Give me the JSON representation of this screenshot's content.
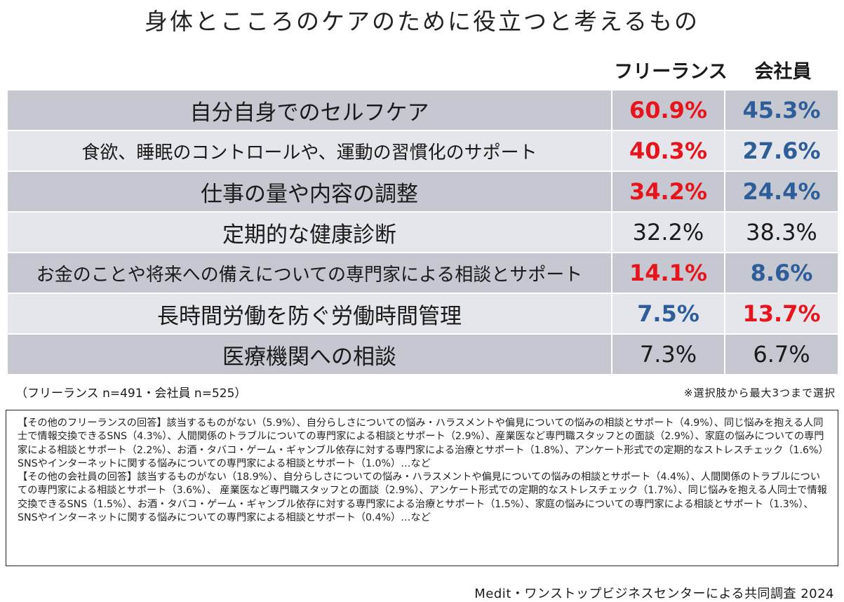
{
  "chart_data": {
    "type": "table",
    "title": "身体とこころのケアのために役立つと考えるもの",
    "columns": [
      "フリーランス",
      "会社員"
    ],
    "colors": {
      "highlight_red": "#e8141c",
      "highlight_blue": "#2e5e9a",
      "plain": "#1a1a1a"
    },
    "rows": [
      {
        "label": "自分自身でのセルフケア",
        "freelance": "60.9%",
        "employee": "45.3%",
        "freelance_color": "red",
        "employee_color": "blue"
      },
      {
        "label": "食欲、睡眠のコントロールや、運動の習慣化のサポート",
        "freelance": "40.3%",
        "employee": "27.6%",
        "freelance_color": "red",
        "employee_color": "blue"
      },
      {
        "label": "仕事の量や内容の調整",
        "freelance": "34.2%",
        "employee": "24.4%",
        "freelance_color": "red",
        "employee_color": "blue"
      },
      {
        "label": "定期的な健康診断",
        "freelance": "32.2%",
        "employee": "38.3%",
        "freelance_color": "plain",
        "employee_color": "plain"
      },
      {
        "label": "お金のことや将来への備えについての専門家による相談とサポート",
        "freelance": "14.1%",
        "employee": "8.6%",
        "freelance_color": "red",
        "employee_color": "blue"
      },
      {
        "label": "長時間労働を防ぐ労働時間管理",
        "freelance": "7.5%",
        "employee": "13.7%",
        "freelance_color": "blue",
        "employee_color": "red"
      },
      {
        "label": "医療機関への相談",
        "freelance": "7.3%",
        "employee": "6.7%",
        "freelance_color": "plain",
        "employee_color": "plain"
      }
    ],
    "sample_note": "（フリーランス n=491・会社員 n=525）",
    "select_note": "※選択肢から最大3つまで選択"
  },
  "other_answers": {
    "freelance": "【その他のフリーランスの回答】該当するものがない（5.9%）、自分らしさについての悩み・ハラスメントや偏見についての悩みの相談とサポート（4.9%）、同じ悩みを抱える人同士で情報交換できるSNS（4.3%）、人間関係のトラブルについての専門家による相談とサポート（2.9%）、産業医など専門職スタッフとの面談（2.9%）、家庭の悩みについての専門家による相談とサポート（2.2%）、お酒・タバコ・ゲーム・ギャンブル依存に対する専門家による治療とサポート（1.8%）、アンケート形式での定期的なストレスチェック（1.6%）SNSやインターネットに関する悩みについての専門家による相談とサポート（1.0%）…など",
    "employee": "【その他の会社員の回答】該当するものがない（18.9%）、自分らしさについての悩み・ハラスメントや偏見についての悩みの相談とサポート（4.4%）、人間関係のトラブルについての専門家による相談とサポート（3.6%）、 産業医など専門職スタッフとの面談（2.9%）、アンケート形式での定期的なストレスチェック（1.7%）、同じ悩みを抱える人同士で情報交換できるSNS（1.5%）、お酒・タバコ・ゲーム・ギャンブル依存に対する専門家による治療とサポート（1.5%）、家庭の悩みについての専門家による相談とサポート（1.3%）、SNSやインターネットに関する悩みについての専門家による相談とサポート（0.4%）…など"
  },
  "footer": "Medit・ワンストップビジネスセンターによる共同調査 2024"
}
